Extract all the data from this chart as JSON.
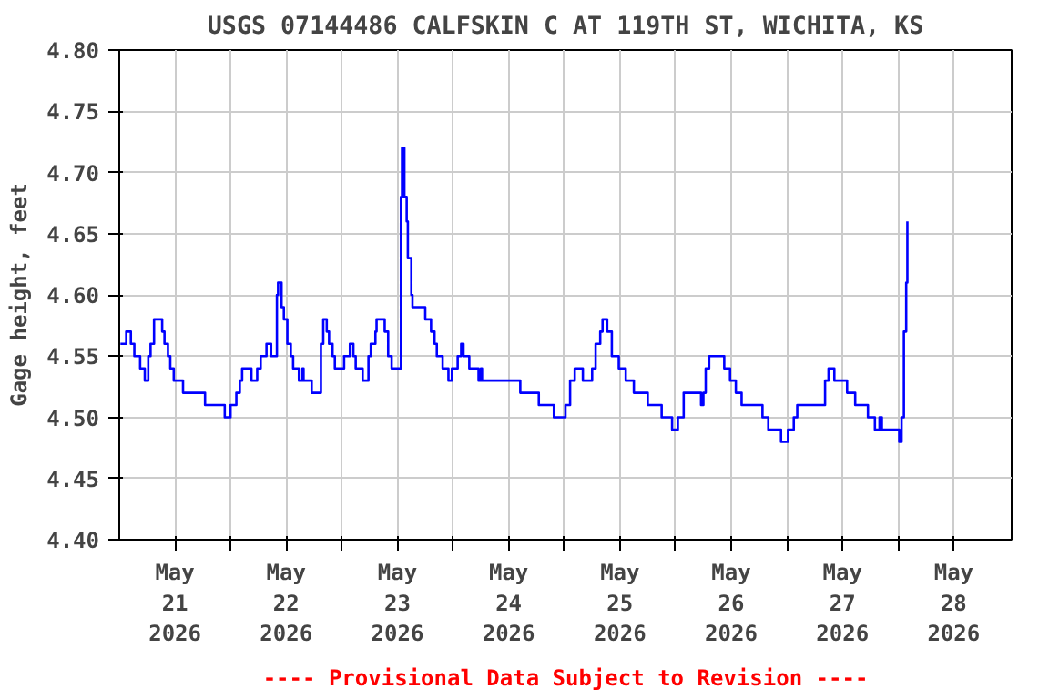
{
  "chart_data": {
    "type": "step",
    "title": "USGS 07144486 CALFSKIN C AT 119TH ST, WICHITA, KS",
    "ylabel": "Gage height, feet",
    "annotations": [
      "---- Provisional Data Subject to Revision ----"
    ],
    "x": [
      "2026-05-20T12:15",
      "2026-05-20T13:30",
      "2026-05-20T14:30",
      "2026-05-20T15:15",
      "2026-05-20T16:30",
      "2026-05-20T17:30",
      "2026-05-20T18:15",
      "2026-05-20T18:45",
      "2026-05-20T19:30",
      "2026-05-20T20:45",
      "2026-05-20T21:15",
      "2026-05-20T21:45",
      "2026-05-20T22:30",
      "2026-05-20T23:00",
      "2026-05-20T23:45",
      "2026-05-21T01:45",
      "2026-05-21T06:15",
      "2026-05-21T06:30",
      "2026-05-21T10:00",
      "2026-05-21T10:45",
      "2026-05-21T12:00",
      "2026-05-21T13:15",
      "2026-05-21T14:00",
      "2026-05-21T14:30",
      "2026-05-21T16:30",
      "2026-05-21T17:45",
      "2026-05-21T18:30",
      "2026-05-21T19:45",
      "2026-05-21T20:45",
      "2026-05-21T21:45",
      "2026-05-21T22:00",
      "2026-05-21T22:15",
      "2026-05-21T23:00",
      "2026-05-21T23:30",
      "2026-05-22T00:15",
      "2026-05-22T01:00",
      "2026-05-22T01:30",
      "2026-05-22T02:45",
      "2026-05-22T03:30",
      "2026-05-22T03:45",
      "2026-05-22T05:30",
      "2026-05-22T07:15",
      "2026-05-22T07:30",
      "2026-05-22T08:00",
      "2026-05-22T08:45",
      "2026-05-22T09:15",
      "2026-05-22T10:00",
      "2026-05-22T10:30",
      "2026-05-22T11:45",
      "2026-05-22T12:30",
      "2026-05-22T13:45",
      "2026-05-22T14:30",
      "2026-05-22T15:00",
      "2026-05-22T16:30",
      "2026-05-22T17:45",
      "2026-05-22T18:15",
      "2026-05-22T19:15",
      "2026-05-22T19:30",
      "2026-05-22T20:45",
      "2026-05-22T21:15",
      "2026-05-22T22:00",
      "2026-05-22T22:45",
      "2026-05-23T00:30",
      "2026-05-23T00:45",
      "2026-05-23T01:00",
      "2026-05-23T01:30",
      "2026-05-23T02:00",
      "2026-05-23T02:15",
      "2026-05-23T03:00",
      "2026-05-23T03:15",
      "2026-05-23T04:45",
      "2026-05-23T06:00",
      "2026-05-23T07:15",
      "2026-05-23T08:00",
      "2026-05-23T08:30",
      "2026-05-23T09:45",
      "2026-05-23T11:00",
      "2026-05-23T11:45",
      "2026-05-23T13:00",
      "2026-05-23T13:45",
      "2026-05-23T14:15",
      "2026-05-23T15:30",
      "2026-05-23T17:30",
      "2026-05-23T18:00",
      "2026-05-23T18:15",
      "2026-05-24T02:30",
      "2026-05-24T06:30",
      "2026-05-24T09:45",
      "2026-05-24T12:15",
      "2026-05-24T13:15",
      "2026-05-24T14:15",
      "2026-05-24T15:30",
      "2026-05-24T16:00",
      "2026-05-24T17:30",
      "2026-05-24T18:00",
      "2026-05-24T18:45",
      "2026-05-24T19:45",
      "2026-05-24T20:15",
      "2026-05-24T21:15",
      "2026-05-24T22:15",
      "2026-05-24T23:45",
      "2026-05-25T01:15",
      "2026-05-25T03:00",
      "2026-05-25T06:00",
      "2026-05-25T09:00",
      "2026-05-25T11:15",
      "2026-05-25T12:30",
      "2026-05-25T13:45",
      "2026-05-25T17:15",
      "2026-05-25T17:30",
      "2026-05-25T18:00",
      "2026-05-25T18:30",
      "2026-05-25T19:15",
      "2026-05-25T21:45",
      "2026-05-25T22:30",
      "2026-05-25T23:45",
      "2026-05-26T01:00",
      "2026-05-26T02:15",
      "2026-05-26T06:15",
      "2026-05-26T06:45",
      "2026-05-26T08:00",
      "2026-05-26T10:00",
      "2026-05-26T10:45",
      "2026-05-26T11:45",
      "2026-05-26T12:15",
      "2026-05-26T13:30",
      "2026-05-26T14:15",
      "2026-05-26T19:30",
      "2026-05-26T20:15",
      "2026-05-26T21:00",
      "2026-05-26T22:15",
      "2026-05-27T01:00",
      "2026-05-27T02:45",
      "2026-05-27T05:30",
      "2026-05-27T07:00",
      "2026-05-27T08:00",
      "2026-05-27T08:30",
      "2026-05-27T11:45",
      "2026-05-27T12:15",
      "2026-05-27T12:45",
      "2026-05-27T13:15",
      "2026-05-27T13:45",
      "2026-05-27T14:00"
    ],
    "series": [
      {
        "color": "#0000ff",
        "values": [
          4.56,
          4.57,
          4.56,
          4.55,
          4.54,
          4.53,
          4.55,
          4.56,
          4.58,
          4.58,
          4.57,
          4.56,
          4.55,
          4.54,
          4.53,
          4.52,
          4.52,
          4.51,
          4.51,
          4.5,
          4.51,
          4.52,
          4.53,
          4.54,
          4.53,
          4.54,
          4.55,
          4.56,
          4.55,
          4.55,
          4.6,
          4.61,
          4.59,
          4.58,
          4.56,
          4.55,
          4.54,
          4.53,
          4.54,
          4.53,
          4.52,
          4.52,
          4.56,
          4.58,
          4.57,
          4.56,
          4.55,
          4.54,
          4.54,
          4.55,
          4.56,
          4.55,
          4.54,
          4.53,
          4.55,
          4.56,
          4.57,
          4.58,
          4.58,
          4.57,
          4.55,
          4.54,
          4.54,
          4.68,
          4.72,
          4.68,
          4.66,
          4.63,
          4.6,
          4.59,
          4.59,
          4.58,
          4.57,
          4.56,
          4.55,
          4.54,
          4.53,
          4.54,
          4.55,
          4.56,
          4.55,
          4.54,
          4.53,
          4.54,
          4.53,
          4.52,
          4.51,
          4.5,
          4.51,
          4.53,
          4.54,
          4.54,
          4.53,
          4.53,
          4.54,
          4.56,
          4.57,
          4.58,
          4.57,
          4.55,
          4.54,
          4.53,
          4.52,
          4.51,
          4.5,
          4.49,
          4.5,
          4.52,
          4.52,
          4.51,
          4.52,
          4.54,
          4.55,
          4.55,
          4.54,
          4.53,
          4.52,
          4.51,
          4.51,
          4.5,
          4.49,
          4.49,
          4.48,
          4.48,
          4.49,
          4.5,
          4.51,
          4.51,
          4.53,
          4.54,
          4.53,
          4.52,
          4.51,
          4.5,
          4.49,
          4.5,
          4.49,
          4.49,
          4.48,
          4.5,
          4.57,
          4.61,
          4.66
        ]
      }
    ],
    "xlim": [
      "2026-05-20T12:00",
      "2026-05-28T12:30"
    ],
    "xticks": [
      {
        "value": "2026-05-21",
        "label": "May\n21\n2026"
      },
      {
        "value": "2026-05-22",
        "label": "May\n22\n2026"
      },
      {
        "value": "2026-05-23",
        "label": "May\n23\n2026"
      },
      {
        "value": "2026-05-24",
        "label": "May\n24\n2026"
      },
      {
        "value": "2026-05-25",
        "label": "May\n25\n2026"
      },
      {
        "value": "2026-05-26",
        "label": "May\n26\n2026"
      },
      {
        "value": "2026-05-27",
        "label": "May\n27\n2026"
      },
      {
        "value": "2026-05-28",
        "label": "May\n28\n2026"
      },
      {
        "value": "2026-05-21T12:00",
        "label": null
      },
      {
        "value": "2026-05-22T12:00",
        "label": null
      },
      {
        "value": "2026-05-23T12:00",
        "label": null
      },
      {
        "value": "2026-05-24T12:00",
        "label": null
      },
      {
        "value": "2026-05-25T12:00",
        "label": null
      },
      {
        "value": "2026-05-26T12:00",
        "label": null
      },
      {
        "value": "2026-05-27T12:00",
        "label": null
      }
    ],
    "ylim": [
      4.4,
      4.8
    ],
    "yticks": [
      {
        "value": 4.4,
        "label": "4.40"
      },
      {
        "value": 4.45,
        "label": "4.45"
      },
      {
        "value": 4.5,
        "label": "4.50"
      },
      {
        "value": 4.55,
        "label": "4.55"
      },
      {
        "value": 4.6,
        "label": "4.60"
      },
      {
        "value": 4.65,
        "label": "4.65"
      },
      {
        "value": 4.7,
        "label": "4.70"
      },
      {
        "value": 4.75,
        "label": "4.75"
      },
      {
        "value": 4.8,
        "label": "4.80"
      }
    ],
    "grid": true,
    "line_style": "solid"
  }
}
